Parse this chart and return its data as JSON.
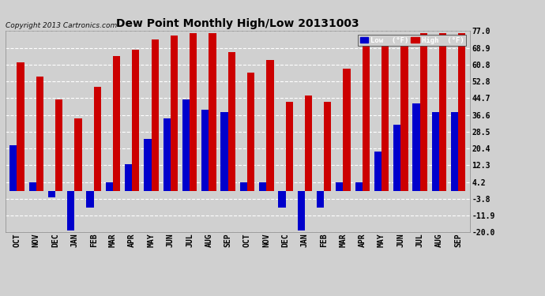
{
  "title": "Dew Point Monthly High/Low 20131003",
  "copyright": "Copyright 2013 Cartronics.com",
  "months": [
    "OCT",
    "NOV",
    "DEC",
    "JAN",
    "FEB",
    "MAR",
    "APR",
    "MAY",
    "JUN",
    "JUL",
    "AUG",
    "SEP",
    "OCT",
    "NOV",
    "DEC",
    "JAN",
    "FEB",
    "MAR",
    "APR",
    "MAY",
    "JUN",
    "JUL",
    "AUG",
    "SEP"
  ],
  "high_values": [
    62.0,
    55.0,
    44.0,
    35.0,
    50.0,
    65.0,
    68.0,
    73.0,
    75.0,
    76.0,
    76.0,
    67.0,
    57.0,
    63.0,
    43.0,
    46.0,
    43.0,
    59.0,
    70.0,
    73.0,
    75.0,
    76.0,
    76.0,
    76.0
  ],
  "low_values": [
    22.0,
    4.0,
    -3.0,
    -19.0,
    -8.0,
    4.0,
    13.0,
    25.0,
    35.0,
    44.0,
    39.0,
    38.0,
    4.0,
    4.0,
    -8.0,
    -19.0,
    -8.0,
    4.0,
    4.0,
    19.0,
    32.0,
    42.0,
    38.0,
    38.0
  ],
  "bar_color_high": "#cc0000",
  "bar_color_low": "#0000cc",
  "background_color": "#d0d0d0",
  "grid_color": "#ffffff",
  "ylim": [
    -20.0,
    77.0
  ],
  "yticks": [
    -20.0,
    -11.9,
    -3.8,
    4.2,
    12.3,
    20.4,
    28.5,
    36.6,
    44.7,
    52.8,
    60.8,
    68.9,
    77.0
  ],
  "ytick_labels": [
    "-20.0",
    "-11.9",
    "-3.8",
    "4.2",
    "12.3",
    "20.4",
    "28.5",
    "36.6",
    "44.7",
    "52.8",
    "60.8",
    "68.9",
    "77.0"
  ],
  "legend_low_label": "Low  (°F)",
  "legend_high_label": "High  (°F)",
  "bar_width": 0.38,
  "title_fontsize": 10,
  "tick_fontsize": 7,
  "copyright_fontsize": 6.5
}
